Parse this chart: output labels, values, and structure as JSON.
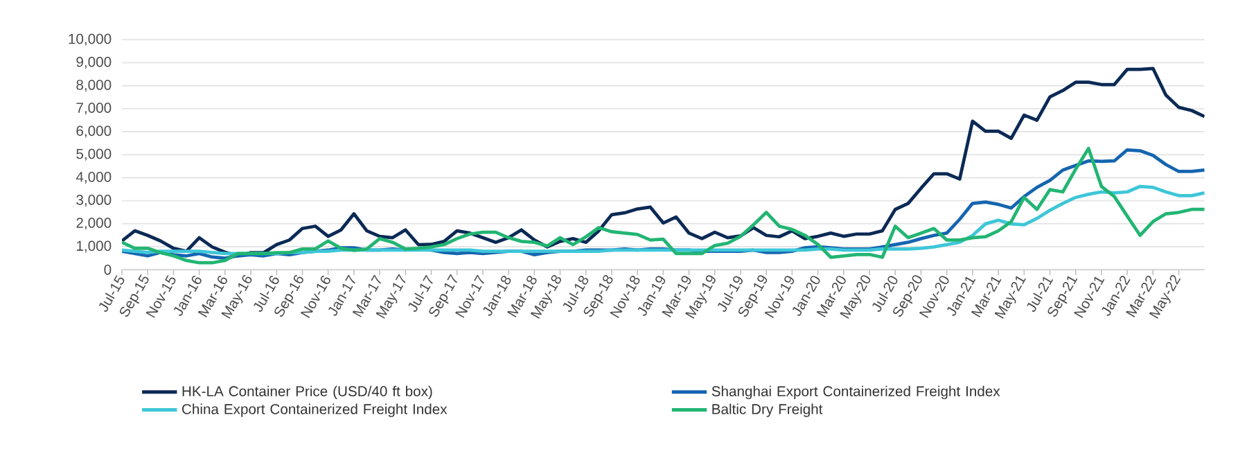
{
  "chart_data": {
    "type": "line",
    "categories": [
      "Jul-15",
      null,
      "Sep-15",
      null,
      "Nov-15",
      null,
      "Jan-16",
      null,
      "Mar-16",
      null,
      "May-16",
      null,
      "Jul-16",
      null,
      "Sep-16",
      null,
      "Nov-16",
      null,
      "Jan-17",
      null,
      "Mar-17",
      null,
      "May-17",
      null,
      "Jul-17",
      null,
      "Sep-17",
      null,
      "Nov-17",
      null,
      "Jan-18",
      null,
      "Mar-18",
      null,
      "May-18",
      null,
      "Jul-18",
      null,
      "Sep-18",
      null,
      "Nov-18",
      null,
      "Jan-19",
      null,
      "Mar-19",
      null,
      "May-19",
      null,
      "Jul-19",
      null,
      "Sep-19",
      null,
      "Nov-19",
      null,
      "Jan-20",
      null,
      "Mar-20",
      null,
      "May-20",
      null,
      "Jul-20",
      null,
      "Sep-20",
      null,
      "Nov-20",
      null,
      "Jan-21",
      null,
      "Mar-21",
      null,
      "May-21",
      null,
      "Jul-21",
      null,
      "Sep-21",
      null,
      "Nov-21",
      null,
      "Jan-22",
      null,
      "Mar-22",
      null,
      "May-22",
      null,
      null
    ],
    "series": [
      {
        "name": "HK-LA Container Price (USD/40 ft box)",
        "color": "#0b2a55",
        "values": [
          1250,
          1690,
          1490,
          1250,
          930,
          800,
          1390,
          990,
          760,
          600,
          740,
          740,
          1090,
          1290,
          1790,
          1890,
          1450,
          1730,
          2430,
          1690,
          1450,
          1390,
          1730,
          1090,
          1100,
          1230,
          1690,
          1590,
          1390,
          1190,
          1390,
          1730,
          1290,
          990,
          1230,
          1350,
          1190,
          1690,
          2390,
          2470,
          2640,
          2720,
          2030,
          2290,
          1590,
          1350,
          1630,
          1390,
          1470,
          1830,
          1490,
          1430,
          1690,
          1350,
          1450,
          1590,
          1450,
          1550,
          1550,
          1690,
          2620,
          2880,
          3540,
          4170,
          4170,
          3940,
          6460,
          6020,
          6020,
          5710,
          6720,
          6500,
          7510,
          7790,
          8150,
          8150,
          8050,
          8050,
          8710,
          8710,
          8750,
          7590,
          7060,
          6920,
          6660
        ]
      },
      {
        "name": "Shanghai Export Containerized Freight Index",
        "color": "#1565b0",
        "values": [
          800,
          700,
          600,
          750,
          650,
          600,
          700,
          550,
          500,
          600,
          650,
          600,
          700,
          650,
          750,
          800,
          850,
          950,
          950,
          850,
          850,
          900,
          850,
          900,
          850,
          750,
          700,
          750,
          700,
          750,
          800,
          800,
          650,
          750,
          800,
          800,
          850,
          850,
          850,
          900,
          850,
          900,
          900,
          850,
          850,
          800,
          800,
          800,
          800,
          850,
          750,
          750,
          800,
          950,
          1000,
          950,
          900,
          900,
          900,
          990,
          1090,
          1190,
          1350,
          1490,
          1590,
          2190,
          2880,
          2940,
          2840,
          2680,
          3180,
          3580,
          3880,
          4330,
          4530,
          4730,
          4710,
          4730,
          5210,
          5170,
          4970,
          4570,
          4270,
          4270,
          4330
        ]
      },
      {
        "name": "China Export Containerized Freight Index",
        "color": "#3ec6d8",
        "values": [
          850,
          800,
          750,
          800,
          800,
          800,
          800,
          750,
          700,
          700,
          700,
          700,
          700,
          750,
          750,
          800,
          800,
          850,
          850,
          850,
          850,
          850,
          850,
          850,
          850,
          850,
          850,
          850,
          800,
          800,
          800,
          800,
          800,
          800,
          800,
          800,
          800,
          800,
          850,
          850,
          850,
          850,
          850,
          850,
          850,
          850,
          850,
          850,
          850,
          850,
          850,
          850,
          850,
          850,
          900,
          900,
          850,
          850,
          850,
          900,
          900,
          900,
          930,
          990,
          1090,
          1190,
          1490,
          1990,
          2150,
          1990,
          1950,
          2230,
          2580,
          2880,
          3140,
          3280,
          3380,
          3340,
          3380,
          3620,
          3580,
          3380,
          3220,
          3220,
          3340
        ]
      },
      {
        "name": "Baltic Dry Freight",
        "color": "#22b573",
        "values": [
          1190,
          930,
          930,
          740,
          600,
          400,
          300,
          300,
          400,
          700,
          700,
          700,
          740,
          740,
          900,
          900,
          1250,
          930,
          840,
          900,
          1350,
          1190,
          900,
          930,
          990,
          1090,
          1350,
          1550,
          1630,
          1630,
          1390,
          1230,
          1190,
          1030,
          1390,
          1090,
          1430,
          1830,
          1650,
          1590,
          1530,
          1290,
          1330,
          700,
          700,
          700,
          1050,
          1150,
          1450,
          1950,
          2490,
          1890,
          1750,
          1490,
          1100,
          540,
          600,
          660,
          660,
          540,
          1890,
          1390,
          1590,
          1790,
          1290,
          1290,
          1390,
          1430,
          1690,
          2090,
          3140,
          2620,
          3480,
          3380,
          4370,
          5270,
          3620,
          3180,
          2330,
          1490,
          2090,
          2430,
          2490,
          2620,
          2620
        ]
      }
    ],
    "ylim": [
      0,
      10000
    ],
    "yticks": [
      {
        "value": 0,
        "label": "0"
      },
      {
        "value": 1000,
        "label": "1,000"
      },
      {
        "value": 2000,
        "label": "2,000"
      },
      {
        "value": 3000,
        "label": "3,000"
      },
      {
        "value": 4000,
        "label": "4,000"
      },
      {
        "value": 5000,
        "label": "5,000"
      },
      {
        "value": 6000,
        "label": "6,000"
      },
      {
        "value": 7000,
        "label": "7,000"
      },
      {
        "value": 8000,
        "label": "8,000"
      },
      {
        "value": 9000,
        "label": "9,000"
      },
      {
        "value": 10000,
        "label": "10,000"
      }
    ],
    "grid": "y",
    "legend": "bottom",
    "marker": "none",
    "line_style": "solid"
  }
}
